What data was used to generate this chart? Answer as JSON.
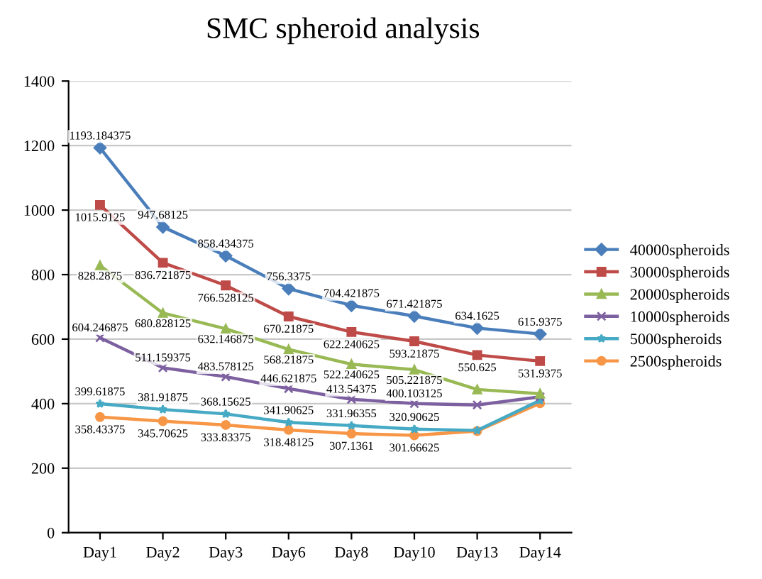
{
  "chart_data": {
    "type": "line",
    "title": "SMC spheroid analysis",
    "categories": [
      "Day1",
      "Day2",
      "Day3",
      "Day6",
      "Day8",
      "Day10",
      "Day13",
      "Day14"
    ],
    "series": [
      {
        "name": "40000spheroids",
        "color": "#4a7ebb",
        "marker": "diamond",
        "values": [
          1193.184375,
          947.68125,
          858.434375,
          756.3375,
          704.421875,
          671.421875,
          634.1625,
          615.9375
        ],
        "value_labels": [
          "1193.184375",
          "947.68125",
          "858.434375",
          "756.3375",
          "704.421875",
          "671.421875",
          "634.1625",
          "615.9375"
        ]
      },
      {
        "name": "30000spheroids",
        "color": "#be4b48",
        "marker": "square",
        "values": [
          1015.9125,
          836.721875,
          766.528125,
          670.21875,
          622.240625,
          593.21875,
          550.625,
          531.9375
        ],
        "value_labels": [
          "1015.9125",
          "836.721875",
          "766.528125",
          "670.21875",
          "622.240625",
          "593.21875",
          "550.625",
          "531.9375"
        ]
      },
      {
        "name": "20000spheroids",
        "color": "#98b954",
        "marker": "triangle",
        "values": [
          828.2875,
          680.828125,
          632.146875,
          568.21875,
          522.240625,
          505.221875,
          444,
          431
        ],
        "value_labels": [
          "828.2875",
          "680.828125",
          "632.146875",
          "568.21875",
          "522.240625",
          "505.221875",
          null,
          null
        ]
      },
      {
        "name": "10000spheroids",
        "color": "#7d60a0",
        "marker": "cross",
        "values": [
          604.246875,
          511.159375,
          483.578125,
          446.621875,
          413.54375,
          400.103125,
          396,
          421
        ],
        "value_labels": [
          "604.246875",
          "511.159375",
          "483.578125",
          "446.621875",
          "413.54375",
          "400.103125",
          null,
          null
        ]
      },
      {
        "name": "5000spheroids",
        "color": "#46aac5",
        "marker": "star",
        "values": [
          399.61875,
          381.91875,
          368.15625,
          341.90625,
          331.96355,
          320.90625,
          317,
          410
        ],
        "value_labels": [
          "399.61875",
          "381.91875",
          "368.15625",
          "341.90625",
          "331.96355",
          "320.90625",
          null,
          null
        ]
      },
      {
        "name": "2500spheroids",
        "color": "#f79646",
        "marker": "circle",
        "values": [
          358.43375,
          345.70625,
          333.83375,
          318.48125,
          307.1361,
          301.66625,
          315,
          401
        ],
        "value_labels": [
          "358.43375",
          "345.70625",
          "333.83375",
          "318.48125",
          "307.1361",
          "301.66625",
          null,
          null
        ]
      }
    ],
    "ylim": [
      0,
      1400
    ],
    "yticks": [
      0,
      200,
      400,
      600,
      800,
      1000,
      1200,
      1400
    ],
    "grid": "y",
    "legend": "right"
  }
}
